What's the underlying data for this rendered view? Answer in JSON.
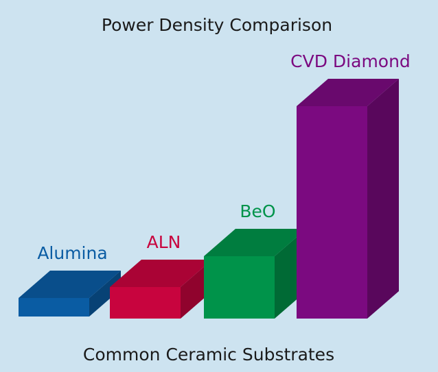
{
  "chart_data": {
    "type": "bar3d",
    "title": "Power Density Comparison",
    "x_label": "Common Ceramic Substrates",
    "categories": [
      "Alumina",
      "ALN",
      "BeO",
      "CVD Diamond"
    ],
    "values": [
      27,
      46,
      91,
      310
    ],
    "colors": [
      "#0a5ca3",
      "#c8043e",
      "#00934a",
      "#7b0a80"
    ]
  }
}
